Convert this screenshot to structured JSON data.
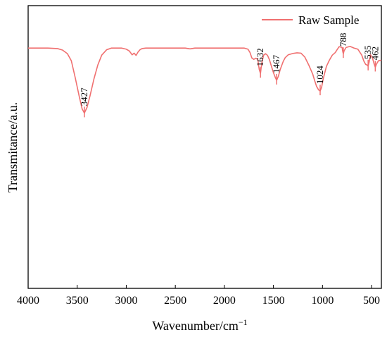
{
  "chart_data": {
    "type": "line",
    "xlabel": "Wavenumber/cm",
    "xlabel_sup": "−1",
    "ylabel": "Transmitance/a.u.",
    "xlim": [
      4000,
      400
    ],
    "x_reversed": true,
    "x_ticks": [
      4000,
      3500,
      3000,
      2500,
      2000,
      1500,
      1000,
      500
    ],
    "ylim": [
      0,
      100
    ],
    "y_ticks_labels_shown": false,
    "grid": false,
    "legend_position": "top-right",
    "colors": {
      "series": "#f07070",
      "axis": "#000000"
    },
    "series": [
      {
        "name": "Raw Sample",
        "x": [
          4000,
          3800,
          3700,
          3650,
          3600,
          3560,
          3520,
          3480,
          3450,
          3427,
          3400,
          3370,
          3330,
          3290,
          3250,
          3200,
          3150,
          3100,
          3050,
          3000,
          2970,
          2940,
          2920,
          2900,
          2880,
          2860,
          2840,
          2800,
          2700,
          2600,
          2500,
          2400,
          2350,
          2300,
          2200,
          2100,
          2000,
          1900,
          1800,
          1760,
          1740,
          1720,
          1700,
          1680,
          1660,
          1645,
          1632,
          1620,
          1600,
          1580,
          1560,
          1540,
          1520,
          1500,
          1480,
          1467,
          1450,
          1430,
          1400,
          1380,
          1350,
          1300,
          1260,
          1220,
          1180,
          1140,
          1100,
          1080,
          1060,
          1040,
          1024,
          1010,
          990,
          960,
          930,
          900,
          870,
          850,
          830,
          800,
          795,
          788,
          780,
          760,
          720,
          680,
          640,
          600,
          580,
          560,
          545,
          535,
          525,
          510,
          490,
          475,
          462,
          450,
          430,
          400
        ],
        "y": [
          85,
          85,
          84.8,
          84.3,
          83,
          80.5,
          74.5,
          68,
          63.5,
          62,
          64,
          68,
          74,
          79,
          82.5,
          84.4,
          85,
          85,
          85,
          84.6,
          84,
          82.6,
          83.2,
          82.4,
          83.6,
          84.4,
          84.8,
          85,
          85,
          85,
          85,
          85,
          84.7,
          85,
          85,
          85,
          85,
          85,
          85,
          84.6,
          83.5,
          81.5,
          81,
          81.4,
          81,
          77.5,
          76,
          79.5,
          82.5,
          83,
          82.4,
          80.8,
          78.5,
          76.3,
          74.5,
          73.6,
          75,
          77.5,
          80.3,
          81.6,
          82.6,
          83.1,
          83.3,
          83.2,
          81.8,
          79,
          75.8,
          73.5,
          71.4,
          70.2,
          69.8,
          71,
          74.5,
          78.5,
          80.7,
          82.5,
          83.4,
          84.5,
          85.5,
          85.2,
          84,
          83,
          84,
          85.2,
          85.6,
          85,
          84.6,
          82.5,
          80.5,
          79.2,
          79,
          78.6,
          80,
          82.6,
          81.4,
          79.5,
          78.2,
          79.3,
          80.5,
          80.7
        ]
      }
    ],
    "annotations": [
      {
        "label": "3427",
        "x": 3427,
        "y": 62
      },
      {
        "label": "1632",
        "x": 1632,
        "y": 76
      },
      {
        "label": "1467",
        "x": 1467,
        "y": 73.6
      },
      {
        "label": "1024",
        "x": 1024,
        "y": 69.8
      },
      {
        "label": "788",
        "x": 788,
        "y": 83
      },
      {
        "label": "535",
        "x": 535,
        "y": 78.6
      },
      {
        "label": "462",
        "x": 462,
        "y": 78.2
      }
    ]
  }
}
